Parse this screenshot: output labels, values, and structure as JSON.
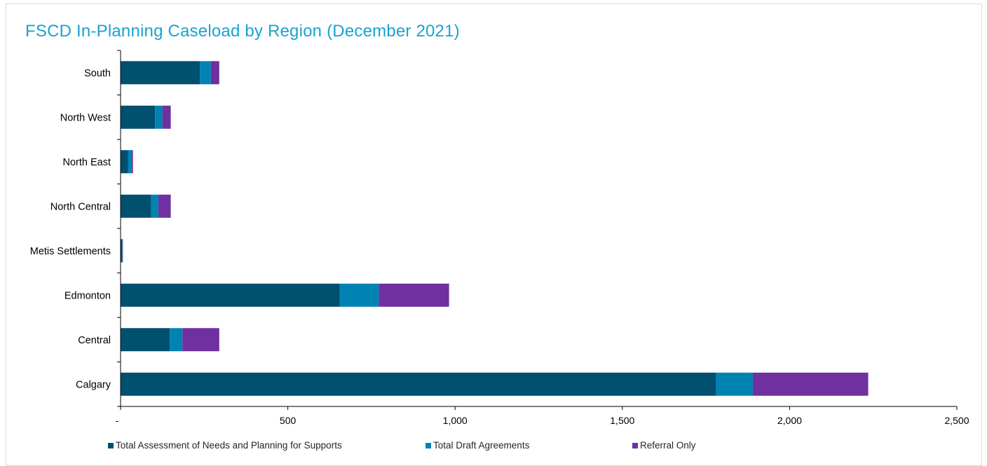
{
  "chart_data": {
    "type": "bar",
    "orientation": "horizontal",
    "stacked": true,
    "title": "FSCD In-Planning Caseload by Region (December 2021)",
    "categories": [
      "South",
      "North West",
      "North East",
      "North Central",
      "Metis Settlements",
      "Edmonton",
      "Central",
      "Calgary"
    ],
    "series": [
      {
        "name": "Total Assessment of Needs and Planning for Supports",
        "color": "#00506f",
        "values": [
          237,
          103,
          22,
          91,
          5,
          655,
          147,
          1780
        ]
      },
      {
        "name": "Total Draft Agreements",
        "color": "#0083b3",
        "values": [
          33,
          22,
          10,
          22,
          1,
          117,
          38,
          110
        ]
      },
      {
        "name": "Referral Only",
        "color": "#7030a0",
        "values": [
          25,
          25,
          5,
          37,
          1,
          210,
          110,
          345
        ]
      }
    ],
    "xlim": [
      0,
      2500
    ],
    "xticks": [
      0,
      500,
      1000,
      1500,
      2000,
      2500
    ],
    "xtick_labels": [
      "-",
      "500",
      "1,000",
      "1,500",
      "2,000",
      "2,500"
    ],
    "grid": false,
    "legend_position": "bottom",
    "title_color": "#1aa3cf",
    "axis_color": "#000000"
  }
}
